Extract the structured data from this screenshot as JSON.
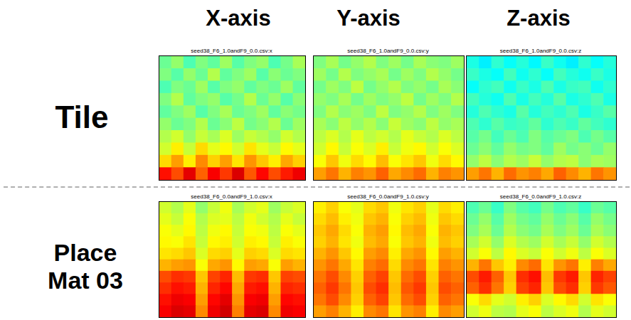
{
  "figure": {
    "column_titles": [
      "X-axis",
      "Y-axis",
      "Z-axis"
    ],
    "row_titles": [
      "Tile",
      "Place Mat 03"
    ]
  },
  "chart_data": [
    {
      "type": "heatmap",
      "title": "seed38_F6_1.0andF9_0.0.csv:x",
      "tick_labels": false,
      "color_range": [
        0,
        1
      ],
      "cells": [
        [
          0.48,
          0.52,
          0.45,
          0.5,
          0.47,
          0.53,
          0.46,
          0.5,
          0.52,
          0.45,
          0.49,
          0.54
        ],
        [
          0.5,
          0.46,
          0.52,
          0.48,
          0.55,
          0.47,
          0.5,
          0.53,
          0.46,
          0.51,
          0.48,
          0.5
        ],
        [
          0.45,
          0.5,
          0.48,
          0.53,
          0.46,
          0.5,
          0.52,
          0.47,
          0.5,
          0.48,
          0.53,
          0.47
        ],
        [
          0.5,
          0.55,
          0.47,
          0.5,
          0.52,
          0.46,
          0.49,
          0.55,
          0.48,
          0.52,
          0.46,
          0.51
        ],
        [
          0.47,
          0.5,
          0.53,
          0.46,
          0.5,
          0.54,
          0.48,
          0.5,
          0.53,
          0.47,
          0.51,
          0.49
        ],
        [
          0.52,
          0.48,
          0.5,
          0.55,
          0.48,
          0.51,
          0.56,
          0.49,
          0.51,
          0.55,
          0.48,
          0.53
        ],
        [
          0.55,
          0.58,
          0.52,
          0.57,
          0.54,
          0.59,
          0.53,
          0.57,
          0.55,
          0.52,
          0.58,
          0.55
        ],
        [
          0.58,
          0.64,
          0.57,
          0.66,
          0.6,
          0.63,
          0.58,
          0.65,
          0.6,
          0.57,
          0.63,
          0.6
        ],
        [
          0.66,
          0.72,
          0.64,
          0.74,
          0.67,
          0.72,
          0.65,
          0.73,
          0.68,
          0.64,
          0.71,
          0.67
        ],
        [
          0.86,
          0.8,
          0.9,
          0.78,
          0.88,
          0.82,
          0.91,
          0.79,
          0.87,
          0.8,
          0.85,
          0.89
        ]
      ]
    },
    {
      "type": "heatmap",
      "title": "seed38_F6_1.0andF9_0.0.csv:y",
      "tick_labels": false,
      "color_range": [
        0,
        1
      ],
      "cells": [
        [
          0.5,
          0.54,
          0.49,
          0.52,
          0.55,
          0.5,
          0.53,
          0.49,
          0.54,
          0.51,
          0.5,
          0.53
        ],
        [
          0.53,
          0.49,
          0.55,
          0.5,
          0.52,
          0.54,
          0.49,
          0.53,
          0.5,
          0.55,
          0.52,
          0.49
        ],
        [
          0.49,
          0.53,
          0.5,
          0.56,
          0.49,
          0.52,
          0.55,
          0.5,
          0.52,
          0.49,
          0.54,
          0.51
        ],
        [
          0.52,
          0.5,
          0.54,
          0.49,
          0.53,
          0.5,
          0.52,
          0.56,
          0.49,
          0.53,
          0.5,
          0.55
        ],
        [
          0.5,
          0.55,
          0.51,
          0.53,
          0.5,
          0.56,
          0.5,
          0.52,
          0.55,
          0.5,
          0.53,
          0.5
        ],
        [
          0.54,
          0.51,
          0.56,
          0.52,
          0.55,
          0.51,
          0.57,
          0.53,
          0.51,
          0.56,
          0.52,
          0.54
        ],
        [
          0.56,
          0.59,
          0.55,
          0.6,
          0.56,
          0.58,
          0.55,
          0.6,
          0.57,
          0.55,
          0.59,
          0.56
        ],
        [
          0.58,
          0.63,
          0.57,
          0.62,
          0.59,
          0.64,
          0.57,
          0.61,
          0.63,
          0.58,
          0.62,
          0.59
        ],
        [
          0.62,
          0.68,
          0.61,
          0.66,
          0.63,
          0.69,
          0.62,
          0.65,
          0.68,
          0.61,
          0.66,
          0.63
        ],
        [
          0.72,
          0.76,
          0.7,
          0.75,
          0.73,
          0.78,
          0.71,
          0.74,
          0.77,
          0.7,
          0.75,
          0.73
        ]
      ]
    },
    {
      "type": "heatmap",
      "title": "seed38_F6_1.0andF9_0.0.csv:z",
      "tick_labels": false,
      "color_range": [
        0,
        1
      ],
      "cells": [
        [
          0.4,
          0.36,
          0.42,
          0.38,
          0.41,
          0.37,
          0.43,
          0.39,
          0.36,
          0.42,
          0.38,
          0.41
        ],
        [
          0.43,
          0.4,
          0.38,
          0.44,
          0.39,
          0.42,
          0.38,
          0.44,
          0.41,
          0.39,
          0.43,
          0.4
        ],
        [
          0.38,
          0.42,
          0.44,
          0.39,
          0.43,
          0.4,
          0.45,
          0.4,
          0.43,
          0.44,
          0.39,
          0.42
        ],
        [
          0.44,
          0.41,
          0.39,
          0.45,
          0.4,
          0.44,
          0.41,
          0.46,
          0.4,
          0.42,
          0.45,
          0.4
        ],
        [
          0.41,
          0.45,
          0.42,
          0.4,
          0.46,
          0.41,
          0.44,
          0.42,
          0.45,
          0.4,
          0.43,
          0.46
        ],
        [
          0.45,
          0.42,
          0.46,
          0.43,
          0.44,
          0.47,
          0.42,
          0.45,
          0.43,
          0.47,
          0.44,
          0.42
        ],
        [
          0.46,
          0.49,
          0.44,
          0.48,
          0.45,
          0.5,
          0.46,
          0.48,
          0.5,
          0.45,
          0.49,
          0.46
        ],
        [
          0.48,
          0.51,
          0.47,
          0.52,
          0.49,
          0.5,
          0.47,
          0.53,
          0.49,
          0.51,
          0.48,
          0.52
        ],
        [
          0.52,
          0.56,
          0.51,
          0.55,
          0.53,
          0.57,
          0.52,
          0.55,
          0.56,
          0.51,
          0.54,
          0.53
        ],
        [
          0.72,
          0.76,
          0.7,
          0.77,
          0.73,
          0.75,
          0.71,
          0.78,
          0.74,
          0.7,
          0.76,
          0.73
        ]
      ]
    },
    {
      "type": "heatmap",
      "title": "seed38_F6_0.0andF9_1.0.csv:x",
      "tick_labels": false,
      "color_range": [
        0,
        1
      ],
      "cells": [
        [
          0.58,
          0.55,
          0.6,
          0.52,
          0.57,
          0.61,
          0.54,
          0.58,
          0.6,
          0.53,
          0.57,
          0.59
        ],
        [
          0.6,
          0.57,
          0.62,
          0.55,
          0.59,
          0.6,
          0.56,
          0.61,
          0.58,
          0.55,
          0.6,
          0.57
        ],
        [
          0.62,
          0.6,
          0.63,
          0.56,
          0.61,
          0.63,
          0.57,
          0.62,
          0.61,
          0.56,
          0.62,
          0.6
        ],
        [
          0.63,
          0.62,
          0.65,
          0.57,
          0.63,
          0.64,
          0.58,
          0.64,
          0.63,
          0.57,
          0.64,
          0.62
        ],
        [
          0.65,
          0.66,
          0.68,
          0.59,
          0.66,
          0.67,
          0.6,
          0.67,
          0.66,
          0.59,
          0.66,
          0.65
        ],
        [
          0.7,
          0.72,
          0.73,
          0.62,
          0.71,
          0.73,
          0.63,
          0.72,
          0.71,
          0.62,
          0.72,
          0.7
        ],
        [
          0.8,
          0.83,
          0.82,
          0.68,
          0.81,
          0.84,
          0.69,
          0.82,
          0.83,
          0.68,
          0.81,
          0.8
        ],
        [
          0.83,
          0.86,
          0.85,
          0.7,
          0.84,
          0.87,
          0.71,
          0.85,
          0.86,
          0.7,
          0.84,
          0.83
        ],
        [
          0.86,
          0.89,
          0.88,
          0.72,
          0.87,
          0.9,
          0.73,
          0.88,
          0.89,
          0.72,
          0.87,
          0.86
        ],
        [
          0.88,
          0.91,
          0.9,
          0.74,
          0.89,
          0.92,
          0.75,
          0.9,
          0.91,
          0.74,
          0.89,
          0.88
        ]
      ]
    },
    {
      "type": "heatmap",
      "title": "seed38_F6_0.0andF9_1.0.csv:y",
      "tick_labels": false,
      "color_range": [
        0,
        1
      ],
      "cells": [
        [
          0.64,
          0.67,
          0.62,
          0.6,
          0.66,
          0.68,
          0.61,
          0.65,
          0.67,
          0.6,
          0.66,
          0.64
        ],
        [
          0.66,
          0.69,
          0.64,
          0.61,
          0.68,
          0.7,
          0.62,
          0.67,
          0.69,
          0.61,
          0.68,
          0.66
        ],
        [
          0.68,
          0.71,
          0.66,
          0.62,
          0.7,
          0.72,
          0.63,
          0.69,
          0.71,
          0.62,
          0.7,
          0.68
        ],
        [
          0.67,
          0.7,
          0.65,
          0.61,
          0.69,
          0.71,
          0.62,
          0.68,
          0.7,
          0.61,
          0.69,
          0.67
        ],
        [
          0.7,
          0.73,
          0.68,
          0.63,
          0.72,
          0.74,
          0.64,
          0.71,
          0.73,
          0.63,
          0.72,
          0.7
        ],
        [
          0.73,
          0.76,
          0.71,
          0.65,
          0.75,
          0.77,
          0.66,
          0.74,
          0.76,
          0.65,
          0.75,
          0.73
        ],
        [
          0.76,
          0.8,
          0.74,
          0.67,
          0.78,
          0.81,
          0.68,
          0.77,
          0.8,
          0.67,
          0.78,
          0.76
        ],
        [
          0.78,
          0.82,
          0.76,
          0.68,
          0.8,
          0.83,
          0.69,
          0.79,
          0.82,
          0.68,
          0.8,
          0.78
        ],
        [
          0.76,
          0.8,
          0.74,
          0.67,
          0.78,
          0.81,
          0.68,
          0.77,
          0.8,
          0.67,
          0.78,
          0.76
        ],
        [
          0.72,
          0.75,
          0.7,
          0.64,
          0.74,
          0.76,
          0.65,
          0.73,
          0.75,
          0.64,
          0.74,
          0.72
        ]
      ]
    },
    {
      "type": "heatmap",
      "title": "seed38_F6_0.0andF9_1.0.csv:z",
      "tick_labels": false,
      "color_range": [
        0,
        1
      ],
      "cells": [
        [
          0.45,
          0.48,
          0.43,
          0.5,
          0.46,
          0.44,
          0.49,
          0.45,
          0.47,
          0.43,
          0.48,
          0.46
        ],
        [
          0.48,
          0.52,
          0.46,
          0.53,
          0.49,
          0.47,
          0.52,
          0.48,
          0.51,
          0.46,
          0.52,
          0.49
        ],
        [
          0.5,
          0.54,
          0.48,
          0.55,
          0.51,
          0.49,
          0.54,
          0.5,
          0.53,
          0.48,
          0.54,
          0.51
        ],
        [
          0.54,
          0.58,
          0.52,
          0.59,
          0.55,
          0.53,
          0.58,
          0.54,
          0.57,
          0.52,
          0.58,
          0.55
        ],
        [
          0.58,
          0.62,
          0.56,
          0.63,
          0.59,
          0.57,
          0.62,
          0.58,
          0.61,
          0.56,
          0.62,
          0.59
        ],
        [
          0.7,
          0.76,
          0.68,
          0.64,
          0.74,
          0.77,
          0.65,
          0.73,
          0.76,
          0.64,
          0.75,
          0.71
        ],
        [
          0.8,
          0.85,
          0.78,
          0.68,
          0.83,
          0.86,
          0.69,
          0.82,
          0.85,
          0.68,
          0.84,
          0.81
        ],
        [
          0.78,
          0.83,
          0.76,
          0.67,
          0.81,
          0.84,
          0.68,
          0.8,
          0.83,
          0.67,
          0.82,
          0.79
        ],
        [
          0.62,
          0.66,
          0.6,
          0.58,
          0.64,
          0.67,
          0.59,
          0.63,
          0.66,
          0.58,
          0.65,
          0.62
        ],
        [
          0.58,
          0.61,
          0.56,
          0.55,
          0.6,
          0.62,
          0.56,
          0.59,
          0.61,
          0.55,
          0.6,
          0.58
        ]
      ]
    }
  ]
}
